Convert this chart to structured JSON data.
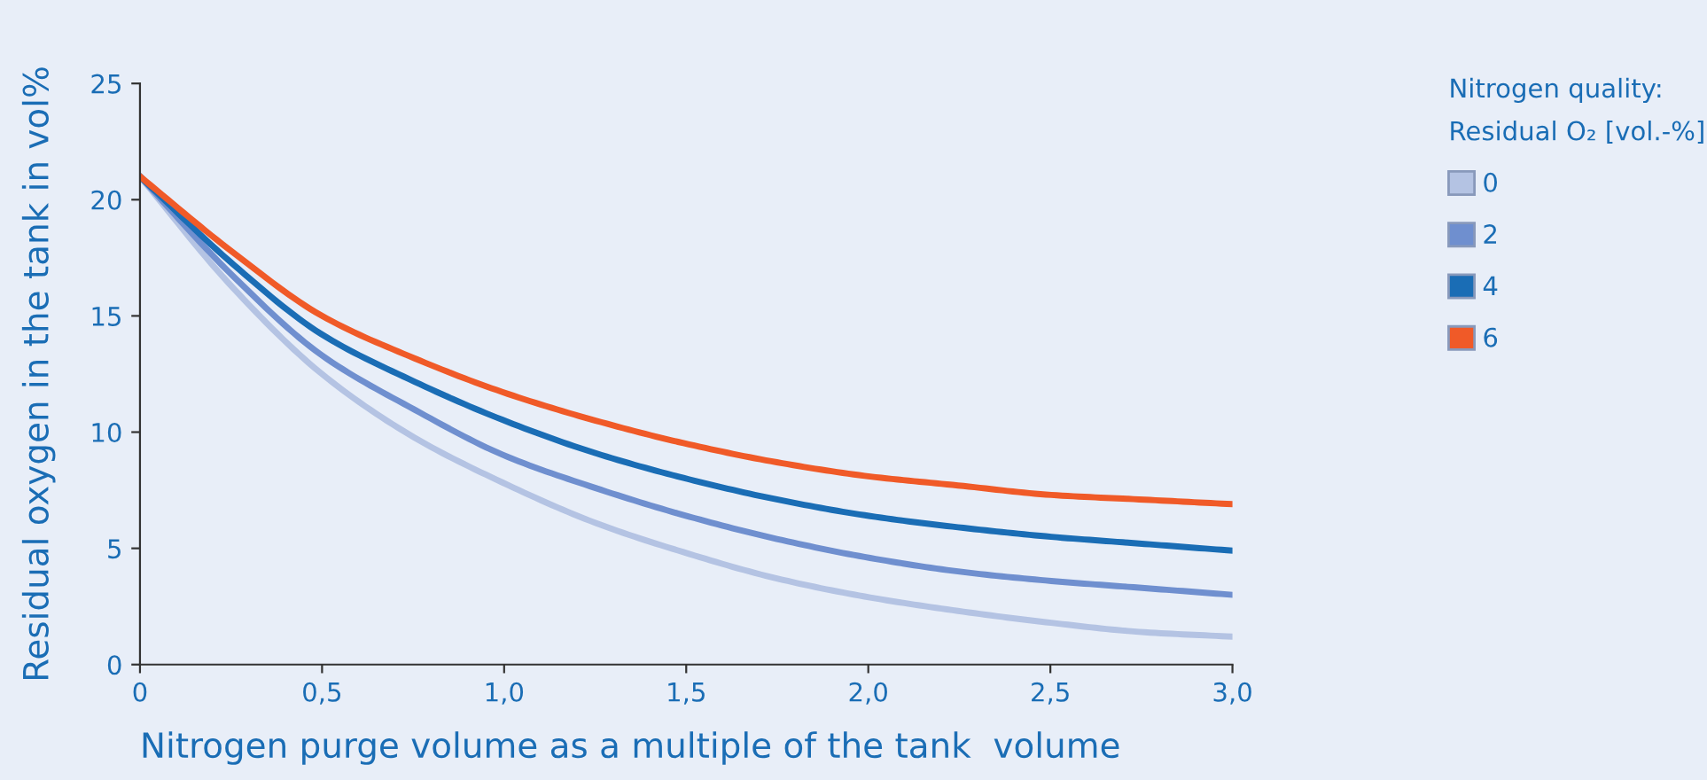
{
  "chart_data": {
    "type": "line",
    "xlabel": "Nitrogen purge volume as a multiple of the tank  volume",
    "ylabel": "Residual oxygen in the tank in vol%",
    "legend_title": "Nitrogen quality:\nResidual O₂ [vol.-%]",
    "x": [
      0,
      0.25,
      0.5,
      0.75,
      1.0,
      1.25,
      1.5,
      1.75,
      2.0,
      2.25,
      2.5,
      2.75,
      3.0
    ],
    "series": [
      {
        "name": "0",
        "color": "#b4c3e3",
        "values": [
          21,
          16.3,
          12.5,
          9.8,
          7.8,
          6.1,
          4.8,
          3.7,
          2.9,
          2.3,
          1.8,
          1.4,
          1.2
        ]
      },
      {
        "name": "2",
        "color": "#6f8fcf",
        "values": [
          21,
          16.8,
          13.3,
          11.0,
          9.0,
          7.6,
          6.4,
          5.4,
          4.6,
          4.0,
          3.6,
          3.3,
          3.0
        ]
      },
      {
        "name": "4",
        "color": "#1a6db5",
        "values": [
          21,
          17.3,
          14.2,
          12.2,
          10.5,
          9.1,
          8.0,
          7.1,
          6.4,
          5.9,
          5.5,
          5.2,
          4.9
        ]
      },
      {
        "name": "6",
        "color": "#f05a28",
        "values": [
          21,
          17.8,
          15.0,
          13.2,
          11.7,
          10.5,
          9.5,
          8.7,
          8.1,
          7.7,
          7.3,
          7.1,
          6.9
        ]
      }
    ],
    "xlim": [
      0,
      3.0
    ],
    "ylim": [
      0,
      25
    ],
    "xticks": [
      0,
      {
        "value": 0.5,
        "label": "0,5"
      },
      {
        "value": 1.0,
        "label": "1,0"
      },
      {
        "value": 1.5,
        "label": "1,5"
      },
      {
        "value": 2.0,
        "label": "2,0"
      },
      {
        "value": 2.5,
        "label": "2,5"
      },
      {
        "value": 3.0,
        "label": "3,0"
      }
    ],
    "yticks": [
      0,
      5,
      10,
      15,
      20,
      25
    ],
    "grid": false,
    "legend": "right",
    "marker": "none",
    "line_style": "solid"
  }
}
